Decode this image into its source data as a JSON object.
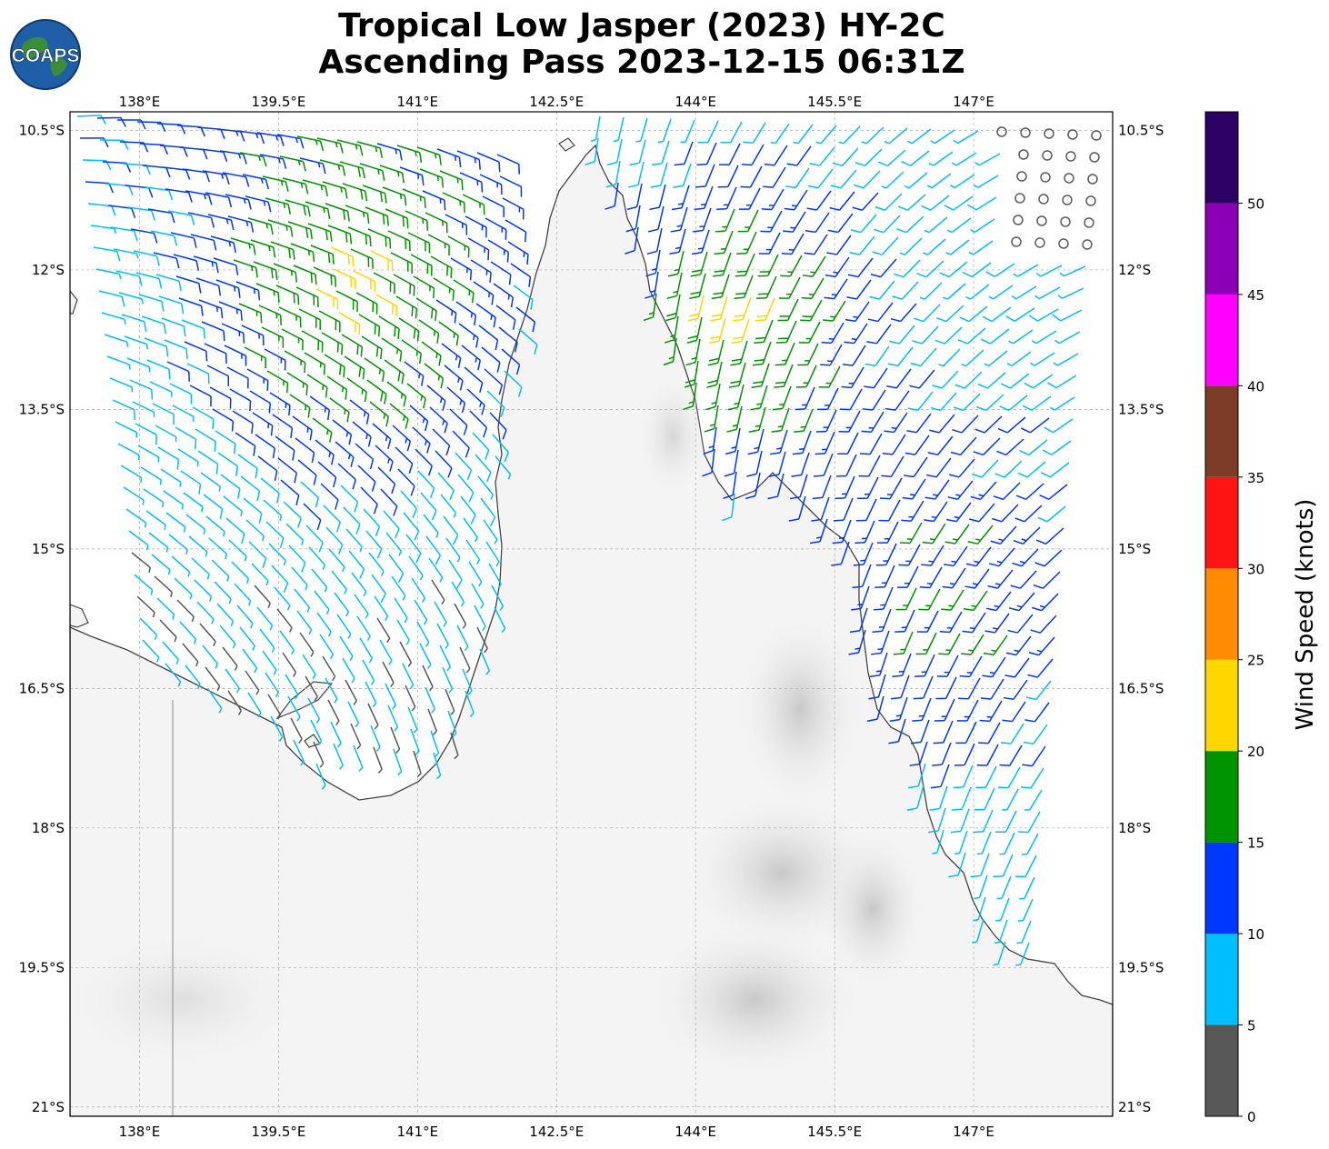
{
  "title": {
    "line1": "Tropical Low Jasper (2023) HY-2C",
    "line2": "Ascending Pass 2023-12-15 06:31Z"
  },
  "logo": {
    "text": "COAPS"
  },
  "map": {
    "lon_range": [
      137.25,
      148.5
    ],
    "lat_range": [
      -21.1,
      -10.3
    ],
    "lon_ticks": [
      "138°E",
      "139.5°E",
      "141°E",
      "142.5°E",
      "144°E",
      "145.5°E",
      "147°E"
    ],
    "lat_ticks": [
      "10.5°S",
      "12°S",
      "13.5°S",
      "15°S",
      "16.5°S",
      "18°S",
      "19.5°S",
      "21°S"
    ],
    "grid": true,
    "colors": {
      "land": "#f4f4f4",
      "ocean": "#ffffff",
      "coast": "#444444",
      "grid": "#aaaaaa"
    }
  },
  "colorbar": {
    "label": "Wind Speed (knots)",
    "ticks": [
      "0",
      "5",
      "10",
      "15",
      "20",
      "25",
      "30",
      "35",
      "40",
      "45",
      "50"
    ],
    "bins": [
      {
        "min": 0,
        "max": 5,
        "color": "#585858"
      },
      {
        "min": 5,
        "max": 10,
        "color": "#00bfff"
      },
      {
        "min": 10,
        "max": 15,
        "color": "#0037ff"
      },
      {
        "min": 15,
        "max": 20,
        "color": "#009400"
      },
      {
        "min": 20,
        "max": 25,
        "color": "#ffd700"
      },
      {
        "min": 25,
        "max": 30,
        "color": "#ff8c00"
      },
      {
        "min": 30,
        "max": 35,
        "color": "#ff1414"
      },
      {
        "min": 35,
        "max": 40,
        "color": "#7d3c28"
      },
      {
        "min": 40,
        "max": 45,
        "color": "#ff00ff"
      },
      {
        "min": 45,
        "max": 50,
        "color": "#8b00b4"
      },
      {
        "min": 50,
        "max": 55,
        "color": "#2d0064"
      }
    ]
  }
}
